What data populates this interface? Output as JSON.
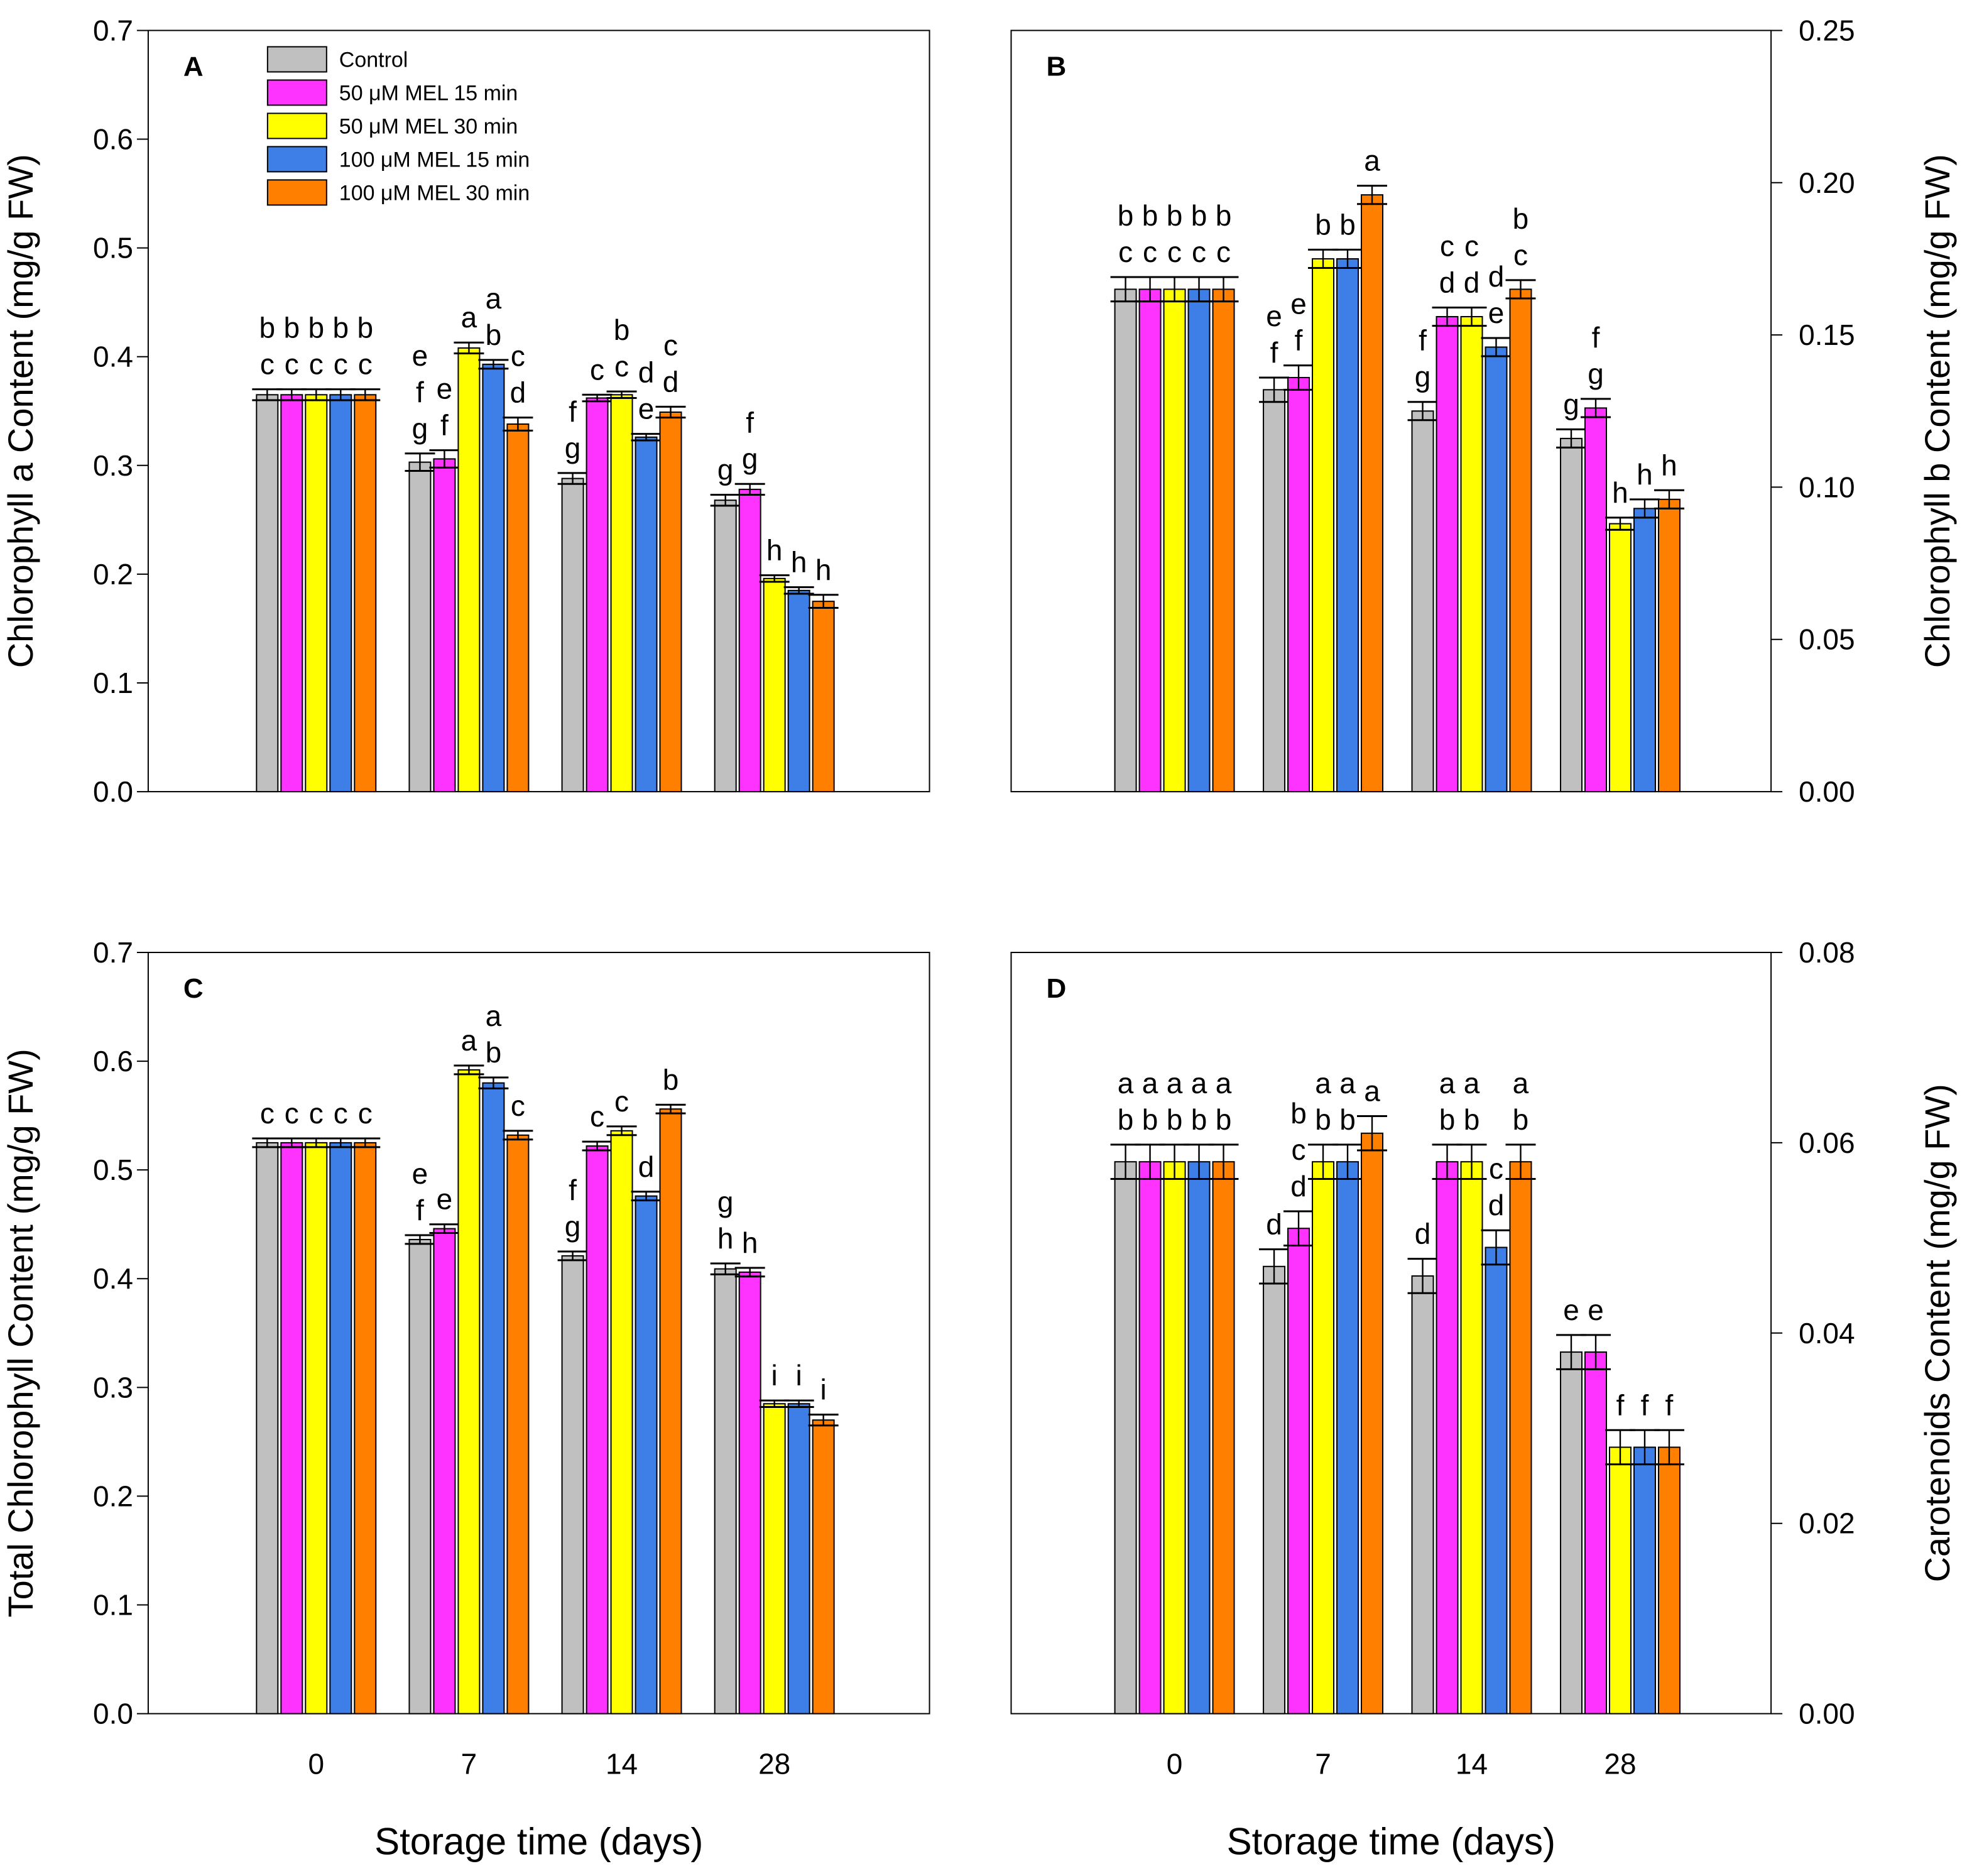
{
  "chart_data": [
    {
      "type": "bar",
      "panel_label": "A",
      "ylabel": "Chlorophyll a Content (mg/g FW)",
      "yaxis_side": "left",
      "categories": [
        null,
        null,
        null,
        null
      ],
      "ylim": [
        0,
        0.7
      ],
      "yticks": [
        {
          "value": 0,
          "label": "0.0"
        },
        0.1,
        0.2,
        0.3,
        0.4,
        0.5,
        0.6,
        0.7
      ],
      "series": [
        {
          "name": "Control",
          "color": "#c0c0c0",
          "values": [
            0.365,
            0.303,
            0.288,
            0.268
          ],
          "errors": [
            0.005,
            0.008,
            0.005,
            0.005
          ],
          "letters": [
            [
              "b",
              "c"
            ],
            [
              "e",
              "f",
              "g"
            ],
            [
              "f",
              "g"
            ],
            [
              "g"
            ]
          ]
        },
        {
          "name": "50 μM MEL 15 min",
          "color": "#ff33ff",
          "values": [
            0.365,
            0.306,
            0.362,
            0.278
          ],
          "errors": [
            0.005,
            0.008,
            0.003,
            0.005
          ],
          "letters": [
            [
              "b",
              "c"
            ],
            [
              "e",
              "f"
            ],
            [
              "c"
            ],
            [
              "f",
              "g"
            ]
          ]
        },
        {
          "name": "50 μM MEL 30 min",
          "color": "#ffff00",
          "values": [
            0.365,
            0.408,
            0.365,
            0.196
          ],
          "errors": [
            0.005,
            0.005,
            0.003,
            0.003
          ],
          "letters": [
            [
              "b",
              "c"
            ],
            [
              "a"
            ],
            [
              "b",
              "c"
            ],
            [
              "h"
            ]
          ]
        },
        {
          "name": "100 μM MEL 15 min",
          "color": "#3d7fe6",
          "values": [
            0.365,
            0.393,
            0.326,
            0.185
          ],
          "errors": [
            0.005,
            0.004,
            0.003,
            0.003
          ],
          "letters": [
            [
              "b",
              "c"
            ],
            [
              "a",
              "b"
            ],
            [
              "d",
              "e"
            ],
            [
              "h"
            ]
          ]
        },
        {
          "name": "100 μM MEL 30 min",
          "color": "#ff7f00",
          "values": [
            0.365,
            0.338,
            0.349,
            0.175
          ],
          "errors": [
            0.005,
            0.006,
            0.005,
            0.006
          ],
          "letters": [
            [
              "b",
              "c"
            ],
            [
              "c",
              "d"
            ],
            [
              "c",
              "d"
            ],
            [
              "h"
            ]
          ]
        }
      ]
    },
    {
      "type": "bar",
      "panel_label": "B",
      "ylabel": "Chlorophyll b Content (mg/g FW)",
      "yaxis_side": "right",
      "categories": [
        null,
        null,
        null,
        null
      ],
      "ylim": [
        0,
        0.25
      ],
      "yticks": [
        {
          "value": 0,
          "label": "0.00"
        },
        0.05,
        {
          "value": 0.1,
          "label": "0.10"
        },
        0.15,
        {
          "value": 0.2,
          "label": "0.20"
        },
        0.25
      ],
      "series": [
        {
          "color": "#c0c0c0",
          "values": [
            0.165,
            0.132,
            0.125,
            0.116
          ],
          "errors": [
            0.004,
            0.004,
            0.003,
            0.003
          ],
          "letters": [
            [
              "b",
              "c"
            ],
            [
              "e",
              "f"
            ],
            [
              "f",
              "g"
            ],
            [
              "g"
            ]
          ]
        },
        {
          "color": "#ff33ff",
          "values": [
            0.165,
            0.136,
            0.156,
            0.126
          ],
          "errors": [
            0.004,
            0.004,
            0.003,
            0.003
          ],
          "letters": [
            [
              "b",
              "c"
            ],
            [
              "e",
              "f"
            ],
            [
              "c",
              "d"
            ],
            [
              "f",
              "g"
            ]
          ]
        },
        {
          "color": "#ffff00",
          "values": [
            0.165,
            0.175,
            0.156,
            0.088
          ],
          "errors": [
            0.004,
            0.003,
            0.003,
            0.002
          ],
          "letters": [
            [
              "b",
              "c"
            ],
            [
              "b"
            ],
            [
              "c",
              "d"
            ],
            [
              "h"
            ]
          ]
        },
        {
          "color": "#3d7fe6",
          "values": [
            0.165,
            0.175,
            0.146,
            0.093
          ],
          "errors": [
            0.004,
            0.003,
            0.003,
            0.003
          ],
          "letters": [
            [
              "b",
              "c"
            ],
            [
              "b"
            ],
            [
              "d",
              "e"
            ],
            [
              "h"
            ]
          ]
        },
        {
          "color": "#ff7f00",
          "values": [
            0.165,
            0.196,
            0.165,
            0.096
          ],
          "errors": [
            0.004,
            0.003,
            0.003,
            0.003
          ],
          "letters": [
            [
              "b",
              "c"
            ],
            [
              "a"
            ],
            [
              "b",
              "c"
            ],
            [
              "h"
            ]
          ]
        }
      ]
    },
    {
      "type": "bar",
      "panel_label": "C",
      "ylabel": "Total Chlorophyll Content (mg/g FW)",
      "xlabel": "Storage time (days)",
      "yaxis_side": "left",
      "categories": [
        "0",
        "7",
        "14",
        "28"
      ],
      "ylim": [
        0,
        0.7
      ],
      "yticks": [
        {
          "value": 0,
          "label": "0.0"
        },
        0.1,
        0.2,
        0.3,
        0.4,
        0.5,
        0.6,
        0.7
      ],
      "series": [
        {
          "color": "#c0c0c0",
          "values": [
            0.525,
            0.436,
            0.421,
            0.409
          ],
          "errors": [
            0.004,
            0.004,
            0.004,
            0.005
          ],
          "letters": [
            [
              "c"
            ],
            [
              "e",
              "f"
            ],
            [
              "f",
              "g"
            ],
            [
              "g",
              "h"
            ]
          ]
        },
        {
          "color": "#ff33ff",
          "values": [
            0.525,
            0.446,
            0.522,
            0.406
          ],
          "errors": [
            0.004,
            0.004,
            0.004,
            0.004
          ],
          "letters": [
            [
              "c"
            ],
            [
              "e"
            ],
            [
              "c"
            ],
            [
              "h"
            ]
          ]
        },
        {
          "color": "#ffff00",
          "values": [
            0.525,
            0.592,
            0.536,
            0.285
          ],
          "errors": [
            0.004,
            0.004,
            0.004,
            0.003
          ],
          "letters": [
            [
              "c"
            ],
            [
              "a"
            ],
            [
              "c"
            ],
            [
              "i"
            ]
          ]
        },
        {
          "color": "#3d7fe6",
          "values": [
            0.525,
            0.58,
            0.476,
            0.285
          ],
          "errors": [
            0.004,
            0.005,
            0.004,
            0.003
          ],
          "letters": [
            [
              "c"
            ],
            [
              "a",
              "b"
            ],
            [
              "d"
            ],
            [
              "i"
            ]
          ]
        },
        {
          "color": "#ff7f00",
          "values": [
            0.525,
            0.532,
            0.556,
            0.27
          ],
          "errors": [
            0.004,
            0.004,
            0.004,
            0.005
          ],
          "letters": [
            [
              "c"
            ],
            [
              "c"
            ],
            [
              "b"
            ],
            [
              "i"
            ]
          ]
        }
      ]
    },
    {
      "type": "bar",
      "panel_label": "D",
      "ylabel": "Carotenoids Content (mg/g FW)",
      "xlabel": "Storage time (days)",
      "yaxis_side": "right",
      "categories": [
        "0",
        "7",
        "14",
        "28"
      ],
      "ylim": [
        0,
        0.08
      ],
      "yticks": [
        {
          "value": 0,
          "label": "0.00"
        },
        0.02,
        0.04,
        0.06,
        0.08
      ],
      "series": [
        {
          "color": "#c0c0c0",
          "values": [
            0.058,
            0.047,
            0.046,
            0.038
          ],
          "errors": [
            0.0018,
            0.0018,
            0.0018,
            0.0018
          ],
          "letters": [
            [
              "a",
              "b"
            ],
            [
              "d"
            ],
            [
              "d"
            ],
            [
              "e"
            ]
          ]
        },
        {
          "color": "#ff33ff",
          "values": [
            0.058,
            0.051,
            0.058,
            0.038
          ],
          "errors": [
            0.0018,
            0.0018,
            0.0018,
            0.0018
          ],
          "letters": [
            [
              "a",
              "b"
            ],
            [
              "b",
              "c",
              "d"
            ],
            [
              "a",
              "b"
            ],
            [
              "e"
            ]
          ]
        },
        {
          "color": "#ffff00",
          "values": [
            0.058,
            0.058,
            0.058,
            0.028
          ],
          "errors": [
            0.0018,
            0.0018,
            0.0018,
            0.0018
          ],
          "letters": [
            [
              "a",
              "b"
            ],
            [
              "a",
              "b"
            ],
            [
              "a",
              "b"
            ],
            [
              "f"
            ]
          ]
        },
        {
          "color": "#3d7fe6",
          "values": [
            0.058,
            0.058,
            0.049,
            0.028
          ],
          "errors": [
            0.0018,
            0.0018,
            0.0018,
            0.0018
          ],
          "letters": [
            [
              "a",
              "b"
            ],
            [
              "a",
              "b"
            ],
            [
              "c",
              "d"
            ],
            [
              "f"
            ]
          ]
        },
        {
          "color": "#ff7f00",
          "values": [
            0.058,
            0.061,
            0.058,
            0.028
          ],
          "errors": [
            0.0018,
            0.0018,
            0.0018,
            0.0018
          ],
          "letters": [
            [
              "a",
              "b"
            ],
            [
              "a"
            ],
            [
              "a",
              "b"
            ],
            [
              "f"
            ]
          ]
        }
      ]
    }
  ]
}
